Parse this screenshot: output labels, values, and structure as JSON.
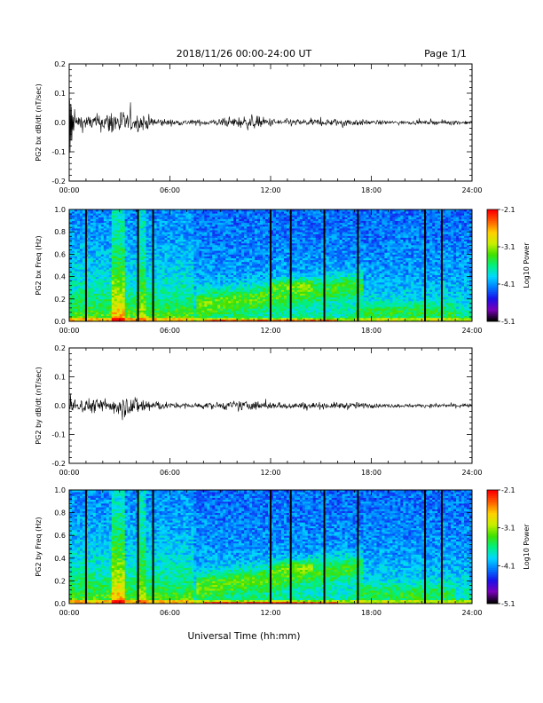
{
  "header": {
    "title": "2018/11/26  00:00-24:00 UT",
    "page": "Page 1/1"
  },
  "x_axis_title": "Universal Time (hh:mm)",
  "x_tick_labels": [
    "00:00",
    "06:00",
    "12:00",
    "18:00",
    "24:00"
  ],
  "colors": {
    "waveform": "#000000",
    "colormap": [
      "#000000",
      "#7a00b8",
      "#1a10e8",
      "#0078ff",
      "#00d8ff",
      "#00f080",
      "#40e000",
      "#c8f000",
      "#ffd000",
      "#ff6000",
      "#ff0000"
    ]
  },
  "chart_data": [
    {
      "type": "line",
      "ylabel": "PG2 bx dB/dt (nT/sec)",
      "xlim": [
        0,
        24
      ],
      "ylim": [
        -0.2,
        0.2
      ],
      "y_tick_labels": [
        "0.2",
        "0.1",
        "0.0",
        "-0.1",
        "-0.2"
      ],
      "x_tick_labels": [
        "00:00",
        "06:00",
        "12:00",
        "18:00",
        "24:00"
      ],
      "series": [
        {
          "envelope_x_hours": [
            0,
            0.2,
            1,
            2,
            2.8,
            3.5,
            4.5,
            5.5,
            6,
            8,
            9.5,
            10.8,
            12,
            13,
            15.5,
            16.5,
            18,
            20,
            21.5,
            22.5,
            24
          ],
          "envelope_amplitude": [
            0.09,
            0.03,
            0.02,
            0.025,
            0.045,
            0.025,
            0.022,
            0.012,
            0.008,
            0.008,
            0.012,
            0.02,
            0.012,
            0.01,
            0.01,
            0.012,
            0.006,
            0.005,
            0.005,
            0.007,
            0.005
          ]
        }
      ]
    },
    {
      "type": "heatmap",
      "ylabel": "PG2 bx Freq (Hz)",
      "xlim": [
        0,
        24
      ],
      "ylim": [
        0,
        1.0
      ],
      "y_tick_labels": [
        "1.0",
        "0.8",
        "0.6",
        "0.4",
        "0.2",
        "0.0"
      ],
      "x_tick_labels": [
        "00:00",
        "06:00",
        "12:00",
        "18:00",
        "24:00"
      ],
      "colorbar": {
        "label": "Log10 Power",
        "range": [
          -5.1,
          -2.1
        ],
        "tick_labels": [
          "-2.1",
          "-3.1",
          "-4.1",
          "-5.1"
        ]
      },
      "data_gaps_hours": [
        1.0,
        4.1,
        5.0,
        12.0,
        13.2,
        15.2,
        17.2,
        21.2,
        22.2
      ]
    },
    {
      "type": "line",
      "ylabel": "PG2 by dB/dt (nT/sec)",
      "xlim": [
        0,
        24
      ],
      "ylim": [
        -0.2,
        0.2
      ],
      "y_tick_labels": [
        "0.2",
        "0.1",
        "0.0",
        "-0.1",
        "-0.2"
      ],
      "x_tick_labels": [
        "00:00",
        "06:00",
        "12:00",
        "18:00",
        "24:00"
      ],
      "series": [
        {
          "envelope_x_hours": [
            0,
            0.5,
            1.5,
            2.5,
            3,
            3.8,
            4.5,
            5.5,
            6,
            8,
            9.5,
            10.5,
            12,
            13.5,
            15.5,
            17,
            18,
            20,
            21.5,
            22.5,
            24
          ],
          "envelope_amplitude": [
            0.02,
            0.02,
            0.02,
            0.02,
            0.035,
            0.025,
            0.025,
            0.012,
            0.008,
            0.008,
            0.012,
            0.015,
            0.01,
            0.01,
            0.009,
            0.01,
            0.006,
            0.005,
            0.005,
            0.007,
            0.005
          ]
        }
      ]
    },
    {
      "type": "heatmap",
      "ylabel": "PG2 by Freq (Hz)",
      "xlim": [
        0,
        24
      ],
      "ylim": [
        0,
        1.0
      ],
      "y_tick_labels": [
        "1.0",
        "0.8",
        "0.6",
        "0.4",
        "0.2",
        "0.0"
      ],
      "x_tick_labels": [
        "00:00",
        "06:00",
        "12:00",
        "18:00",
        "24:00"
      ],
      "colorbar": {
        "label": "Log10 Power",
        "range": [
          -5.1,
          -2.1
        ],
        "tick_labels": [
          "-2.1",
          "-3.1",
          "-4.1",
          "-5.1"
        ]
      },
      "data_gaps_hours": [
        1.0,
        4.1,
        5.0,
        12.0,
        13.2,
        15.2,
        17.2,
        21.2,
        22.2
      ]
    }
  ]
}
